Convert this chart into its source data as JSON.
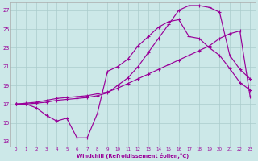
{
  "bg_color": "#cce8e8",
  "grid_color": "#aacccc",
  "line_color": "#990099",
  "xlabel": "Windchill (Refroidissement éolien,°C)",
  "xlim": [
    -0.5,
    23.5
  ],
  "ylim": [
    12.5,
    27.8
  ],
  "xticks": [
    0,
    1,
    2,
    3,
    4,
    5,
    6,
    7,
    8,
    9,
    10,
    11,
    12,
    13,
    14,
    15,
    16,
    17,
    18,
    19,
    20,
    21,
    22,
    23
  ],
  "yticks": [
    13,
    15,
    17,
    19,
    21,
    23,
    25,
    27
  ],
  "curve1_x": [
    0,
    1,
    2,
    3,
    4,
    5,
    6,
    7,
    8,
    9,
    10,
    11,
    12,
    13,
    14,
    15,
    16,
    17,
    18,
    19,
    20,
    21,
    22,
    23
  ],
  "curve1_y": [
    17.0,
    17.0,
    16.6,
    15.8,
    15.2,
    15.5,
    13.4,
    13.4,
    16.0,
    20.5,
    21.0,
    21.8,
    23.2,
    24.2,
    25.2,
    25.8,
    26.0,
    24.2,
    24.0,
    23.0,
    22.2,
    20.8,
    19.3,
    18.5
  ],
  "curve2_x": [
    0,
    1,
    2,
    3,
    4,
    5,
    6,
    7,
    8,
    9,
    10,
    11,
    12,
    13,
    14,
    15,
    16,
    17,
    18,
    19,
    20,
    21,
    22,
    23
  ],
  "curve2_y": [
    17.0,
    17.1,
    17.2,
    17.4,
    17.6,
    17.7,
    17.8,
    17.9,
    18.1,
    18.3,
    18.7,
    19.2,
    19.7,
    20.2,
    20.7,
    21.2,
    21.7,
    22.2,
    22.7,
    23.2,
    24.0,
    24.5,
    24.8,
    17.8
  ],
  "curve3_x": [
    0,
    1,
    2,
    3,
    4,
    5,
    6,
    7,
    8,
    9,
    10,
    11,
    12,
    13,
    14,
    15,
    16,
    17,
    18,
    19,
    20,
    21,
    22,
    23
  ],
  "curve3_y": [
    17.0,
    17.0,
    17.1,
    17.2,
    17.4,
    17.5,
    17.6,
    17.7,
    17.9,
    18.2,
    19.0,
    19.8,
    21.0,
    22.5,
    24.0,
    25.5,
    27.0,
    27.5,
    27.5,
    27.3,
    26.8,
    22.2,
    20.7,
    19.7
  ]
}
